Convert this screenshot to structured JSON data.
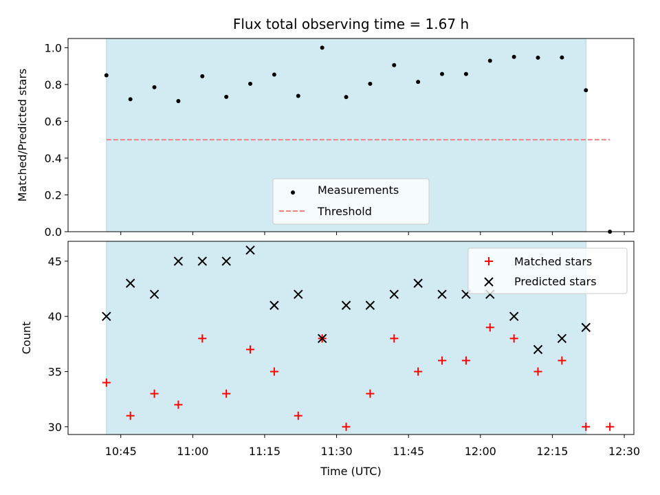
{
  "colors": {
    "shade": "#add8e6",
    "measurement": "#000000",
    "threshold": "#f08080",
    "matched": "#ff0000",
    "predicted": "#000000"
  },
  "chart_data": [
    {
      "type": "scatter",
      "title": "Flux total observing time = 1.67 h",
      "xlabel": "",
      "ylabel": "Matched/Predicted stars",
      "ylim": [
        0,
        1.05
      ],
      "xlim": [
        "10:34",
        "12:32"
      ],
      "yticks": [
        "0.0",
        "0.2",
        "0.4",
        "0.6",
        "0.8",
        "1.0"
      ],
      "shaded_span": [
        "10:42",
        "12:22"
      ],
      "grid": false,
      "legend_position": "lower center",
      "legend": [
        "Measurements",
        "Threshold"
      ],
      "threshold": {
        "name": "Threshold",
        "value": 0.5,
        "x_range": [
          "10:42",
          "12:27"
        ],
        "style": "dashed"
      },
      "series": [
        {
          "name": "Measurements",
          "x": [
            "10:42",
            "10:47",
            "10:52",
            "10:57",
            "11:02",
            "11:07",
            "11:12",
            "11:17",
            "11:22",
            "11:27",
            "11:32",
            "11:37",
            "11:42",
            "11:47",
            "11:52",
            "11:57",
            "12:02",
            "12:07",
            "12:12",
            "12:17",
            "12:22",
            "12:27"
          ],
          "y": [
            0.85,
            0.72,
            0.785,
            0.71,
            0.845,
            0.733,
            0.804,
            0.854,
            0.738,
            1.0,
            0.732,
            0.804,
            0.905,
            0.814,
            0.857,
            0.857,
            0.929,
            0.95,
            0.946,
            0.947,
            0.769,
            0.0
          ]
        }
      ]
    },
    {
      "type": "scatter",
      "title": "",
      "xlabel": "Time (UTC)",
      "ylabel": "Count",
      "ylim": [
        29.3,
        46.8
      ],
      "xlim": [
        "10:34",
        "12:32"
      ],
      "yticks": [
        "30",
        "35",
        "40",
        "45"
      ],
      "xticks": [
        "10:45",
        "11:00",
        "11:15",
        "11:30",
        "11:45",
        "12:00",
        "12:15",
        "12:30"
      ],
      "shaded_span": [
        "10:42",
        "12:22"
      ],
      "grid": false,
      "legend_position": "upper right",
      "legend": [
        "Matched stars",
        "Predicted stars"
      ],
      "series": [
        {
          "name": "Matched stars",
          "marker": "plus",
          "x": [
            "10:42",
            "10:47",
            "10:52",
            "10:57",
            "11:02",
            "11:07",
            "11:12",
            "11:17",
            "11:22",
            "11:27",
            "11:32",
            "11:37",
            "11:42",
            "11:47",
            "11:52",
            "11:57",
            "12:02",
            "12:07",
            "12:12",
            "12:17",
            "12:22",
            "12:27"
          ],
          "y": [
            34,
            31,
            33,
            32,
            38,
            33,
            37,
            35,
            31,
            38,
            30,
            33,
            38,
            35,
            36,
            36,
            39,
            38,
            35,
            36,
            30,
            30
          ]
        },
        {
          "name": "Predicted stars",
          "marker": "x",
          "x": [
            "10:42",
            "10:47",
            "10:52",
            "10:57",
            "11:02",
            "11:07",
            "11:12",
            "11:17",
            "11:22",
            "11:27",
            "11:32",
            "11:37",
            "11:42",
            "11:47",
            "11:52",
            "11:57",
            "12:02",
            "12:07",
            "12:12",
            "12:17",
            "12:22"
          ],
          "y": [
            40,
            43,
            42,
            45,
            45,
            45,
            46,
            41,
            42,
            38,
            41,
            41,
            42,
            43,
            42,
            42,
            42,
            40,
            37,
            38,
            39
          ]
        }
      ]
    }
  ]
}
